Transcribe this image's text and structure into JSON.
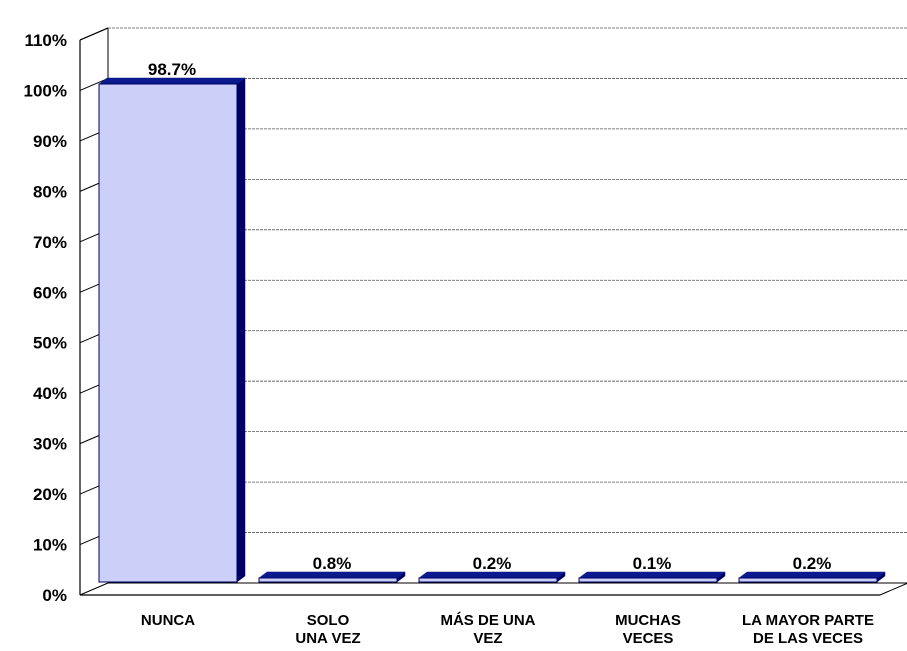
{
  "chart_data": {
    "type": "bar",
    "categories": [
      [
        "NUNCA"
      ],
      [
        "SOLO",
        "UNA VEZ"
      ],
      [
        "MÁS DE UNA",
        "VEZ"
      ],
      [
        "MUCHAS",
        "VECES"
      ],
      [
        "LA MAYOR PARTE",
        "DE LAS VECES"
      ]
    ],
    "values": [
      98.7,
      0.8,
      0.2,
      0.1,
      0.2
    ],
    "data_labels": [
      "98.7%",
      "0.8%",
      "0.2%",
      "0.1%",
      "0.2%"
    ],
    "title": "",
    "xlabel": "",
    "ylabel": "",
    "ylim": [
      0,
      110
    ],
    "y_ticks": [
      "0%",
      "10%",
      "20%",
      "30%",
      "40%",
      "50%",
      "60%",
      "70%",
      "80%",
      "90%",
      "100%",
      "110%"
    ],
    "grid": true,
    "legend": "none",
    "colors": {
      "bar_face": "#CCD0F8",
      "bar_side": "#000066",
      "bar_top": "#0A1A8C",
      "grid": "#555555",
      "axis": "#000000"
    }
  }
}
